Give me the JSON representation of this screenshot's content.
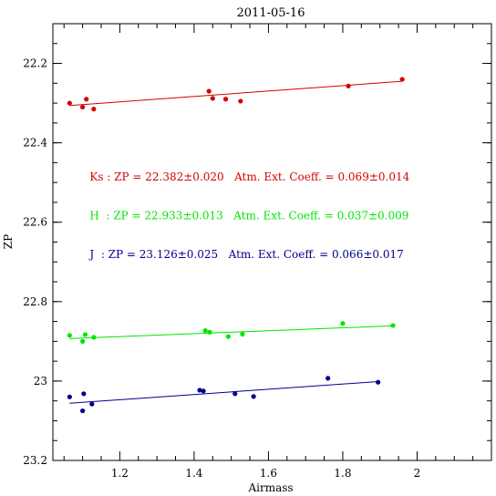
{
  "chart_data": {
    "type": "scatter",
    "title": "2011-05-16",
    "xlabel": "Airmass",
    "ylabel": "ZP",
    "xlim": [
      1.02,
      2.2
    ],
    "ylim": [
      23.2,
      22.1
    ],
    "y_inverted": true,
    "grid": false,
    "x_ticks": [
      {
        "value": 1.2,
        "label": "1.2"
      },
      {
        "value": 1.4,
        "label": "1.4"
      },
      {
        "value": 1.6,
        "label": "1.6"
      },
      {
        "value": 1.8,
        "label": "1.8"
      },
      {
        "value": 2.0,
        "label": "2"
      }
    ],
    "y_ticks": [
      {
        "value": 22.2,
        "label": "22.2"
      },
      {
        "value": 22.4,
        "label": "22.4"
      },
      {
        "value": 22.6,
        "label": "22.6"
      },
      {
        "value": 22.8,
        "label": "22.8"
      },
      {
        "value": 23.0,
        "label": "23"
      },
      {
        "value": 23.2,
        "label": "23.2"
      }
    ],
    "series": [
      {
        "name": "Ks",
        "color": "#d40000",
        "points": [
          {
            "x": 1.065,
            "y": 22.3
          },
          {
            "x": 1.1,
            "y": 22.31
          },
          {
            "x": 1.11,
            "y": 22.29
          },
          {
            "x": 1.13,
            "y": 22.315
          },
          {
            "x": 1.44,
            "y": 22.27
          },
          {
            "x": 1.45,
            "y": 22.288
          },
          {
            "x": 1.485,
            "y": 22.29
          },
          {
            "x": 1.525,
            "y": 22.295
          },
          {
            "x": 1.815,
            "y": 22.257
          },
          {
            "x": 1.96,
            "y": 22.24
          }
        ],
        "fit": {
          "x": [
            1.065,
            1.96
          ],
          "y": [
            22.306,
            22.245
          ]
        }
      },
      {
        "name": "H",
        "color": "#00e600",
        "points": [
          {
            "x": 1.065,
            "y": 22.885
          },
          {
            "x": 1.1,
            "y": 22.9
          },
          {
            "x": 1.107,
            "y": 22.883
          },
          {
            "x": 1.13,
            "y": 22.89
          },
          {
            "x": 1.43,
            "y": 22.873
          },
          {
            "x": 1.442,
            "y": 22.877
          },
          {
            "x": 1.492,
            "y": 22.888
          },
          {
            "x": 1.53,
            "y": 22.882
          },
          {
            "x": 1.8,
            "y": 22.855
          },
          {
            "x": 1.935,
            "y": 22.86
          }
        ],
        "fit": {
          "x": [
            1.065,
            1.935
          ],
          "y": [
            22.893,
            22.861
          ]
        }
      },
      {
        "name": "J",
        "color": "#00008b",
        "points": [
          {
            "x": 1.065,
            "y": 23.04
          },
          {
            "x": 1.1,
            "y": 23.075
          },
          {
            "x": 1.103,
            "y": 23.032
          },
          {
            "x": 1.125,
            "y": 23.058
          },
          {
            "x": 1.415,
            "y": 23.023
          },
          {
            "x": 1.425,
            "y": 23.025
          },
          {
            "x": 1.51,
            "y": 23.032
          },
          {
            "x": 1.56,
            "y": 23.039
          },
          {
            "x": 1.76,
            "y": 22.993
          },
          {
            "x": 1.895,
            "y": 23.003
          }
        ],
        "fit": {
          "x": [
            1.065,
            1.9
          ],
          "y": [
            23.056,
            23.001
          ]
        }
      }
    ],
    "annotations": [
      {
        "text": "Ks : ZP = 22.382±0.020   Atm. Ext. Coeff. = 0.069±0.014",
        "color": "#d40000",
        "x": 1.07,
        "y": 22.495
      },
      {
        "text": "H  : ZP = 22.933±0.013   Atm. Ext. Coeff. = 0.037±0.009",
        "color": "#00e600",
        "x": 1.07,
        "y": 22.593
      },
      {
        "text": "J  : ZP = 23.126±0.025   Atm. Ext. Coeff. = 0.066±0.017",
        "color": "#00008b",
        "x": 1.07,
        "y": 22.69
      }
    ]
  }
}
